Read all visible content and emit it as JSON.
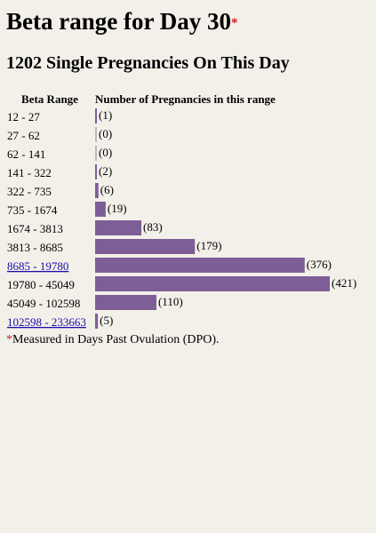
{
  "header": {
    "title": "Beta range for Day 30",
    "title_marker": "*",
    "subtitle": "1202 Single Pregnancies On This Day"
  },
  "footnote": {
    "marker": "*",
    "text": "Measured in Days Past Ovulation (DPO)."
  },
  "colors": {
    "bar": "#7e5e97",
    "link": "#1a0dab",
    "accent": "#cc2222",
    "background": "#f3f0e9"
  },
  "chart_data": {
    "type": "bar",
    "orientation": "horizontal",
    "category_header": "Beta Range",
    "value_header": "Number of Pregnancies in this range",
    "categories": [
      "12 - 27",
      "27 - 62",
      "62 - 141",
      "141 - 322",
      "322 - 735",
      "735 - 1674",
      "1674 - 3813",
      "3813 - 8685",
      "8685 - 19780",
      "19780 - 45049",
      "45049 - 102598",
      "102598 - 233663"
    ],
    "linked": [
      false,
      false,
      false,
      false,
      false,
      false,
      false,
      false,
      true,
      false,
      false,
      true
    ],
    "values": [
      1,
      0,
      0,
      2,
      6,
      19,
      83,
      179,
      376,
      421,
      110,
      5
    ],
    "value_labels": [
      "(1)",
      "(0)",
      "(0)",
      "(2)",
      "(6)",
      "(19)",
      "(83)",
      "(179)",
      "(376)",
      "(421)",
      "(110)",
      "(5)"
    ],
    "grid": false,
    "legend": "none"
  }
}
